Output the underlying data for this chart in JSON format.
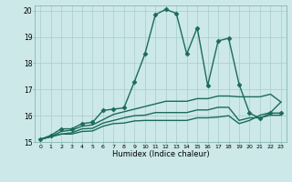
{
  "title": "",
  "xlabel": "Humidex (Indice chaleur)",
  "ylabel": "",
  "bg_color": "#cce8e8",
  "line_color": "#1a6b5a",
  "grid_color": "#aacccc",
  "xlim": [
    -0.5,
    23.5
  ],
  "ylim": [
    15,
    20.2
  ],
  "yticks": [
    15,
    16,
    17,
    18,
    19,
    20
  ],
  "xticks": [
    0,
    1,
    2,
    3,
    4,
    5,
    6,
    7,
    8,
    9,
    10,
    11,
    12,
    13,
    14,
    15,
    16,
    17,
    18,
    19,
    20,
    21,
    22,
    23
  ],
  "lines": [
    {
      "x": [
        0,
        1,
        2,
        3,
        4,
        5,
        6,
        7,
        8,
        9,
        10,
        11,
        12,
        13,
        14,
        15,
        16,
        17,
        18,
        19,
        20,
        21,
        22,
        23
      ],
      "y": [
        15.1,
        15.25,
        15.5,
        15.5,
        15.7,
        15.75,
        16.2,
        16.25,
        16.3,
        17.3,
        18.35,
        19.85,
        20.05,
        19.9,
        18.35,
        19.35,
        17.15,
        18.85,
        18.95,
        17.2,
        16.1,
        15.9,
        16.1,
        16.1
      ],
      "marker": "D",
      "markersize": 2.5,
      "lw": 1.0
    },
    {
      "x": [
        0,
        1,
        2,
        3,
        4,
        5,
        6,
        7,
        8,
        9,
        10,
        11,
        12,
        13,
        14,
        15,
        16,
        17,
        18,
        19,
        20,
        21,
        22,
        23
      ],
      "y": [
        15.1,
        15.2,
        15.4,
        15.45,
        15.6,
        15.65,
        15.85,
        16.05,
        16.15,
        16.25,
        16.35,
        16.45,
        16.55,
        16.55,
        16.55,
        16.65,
        16.65,
        16.75,
        16.75,
        16.72,
        16.72,
        16.72,
        16.82,
        16.52
      ],
      "marker": null,
      "markersize": 0,
      "lw": 1.0
    },
    {
      "x": [
        0,
        1,
        2,
        3,
        4,
        5,
        6,
        7,
        8,
        9,
        10,
        11,
        12,
        13,
        14,
        15,
        16,
        17,
        18,
        19,
        20,
        21,
        22,
        23
      ],
      "y": [
        15.1,
        15.2,
        15.3,
        15.35,
        15.5,
        15.52,
        15.72,
        15.82,
        15.92,
        16.0,
        16.02,
        16.12,
        16.12,
        16.12,
        16.12,
        16.22,
        16.22,
        16.32,
        16.32,
        15.82,
        15.92,
        15.92,
        16.02,
        16.02
      ],
      "marker": null,
      "markersize": 0,
      "lw": 1.0
    },
    {
      "x": [
        0,
        1,
        2,
        3,
        4,
        5,
        6,
        7,
        8,
        9,
        10,
        11,
        12,
        13,
        14,
        15,
        16,
        17,
        18,
        19,
        20,
        21,
        22,
        23
      ],
      "y": [
        15.1,
        15.2,
        15.3,
        15.3,
        15.4,
        15.42,
        15.6,
        15.7,
        15.72,
        15.8,
        15.82,
        15.82,
        15.82,
        15.82,
        15.82,
        15.92,
        15.92,
        15.95,
        16.0,
        15.7,
        15.82,
        16.02,
        16.12,
        16.52
      ],
      "marker": null,
      "markersize": 0,
      "lw": 1.0
    }
  ]
}
